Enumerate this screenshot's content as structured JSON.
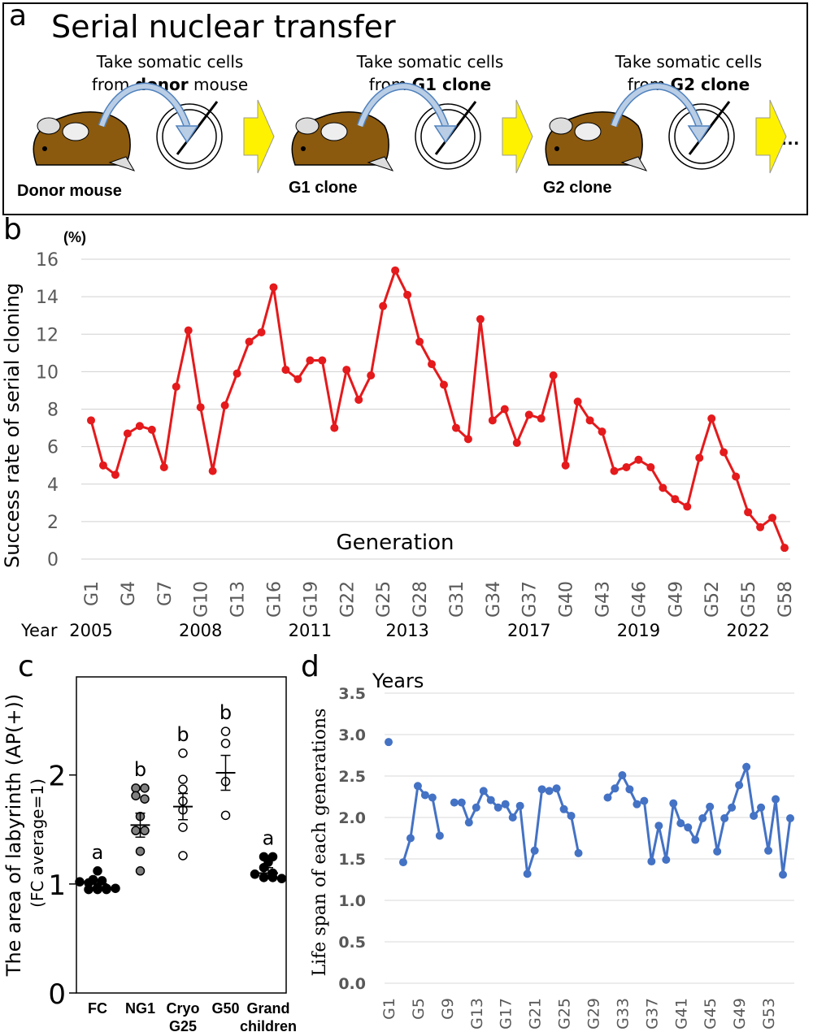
{
  "panel_a": {
    "letter": "a",
    "title": "Serial nuclear transfer",
    "steps": [
      {
        "line1": "Take somatic cells",
        "line2_pre": "from ",
        "line2_bold": "donor",
        "line2_post": " mouse",
        "label": "Donor mouse"
      },
      {
        "line1": "Take somatic cells",
        "line2_pre": "from ",
        "line2_bold": "G1 clone",
        "line2_post": "",
        "label": "G1 clone"
      },
      {
        "line1": "Take somatic cells",
        "line2_pre": "from ",
        "line2_bold": "G2 clone",
        "line2_post": "",
        "label": "G2 clone"
      }
    ],
    "ellipsis": "…",
    "colors": {
      "mouse": "#8B5A0E",
      "arrow": "#FFF200",
      "curve": "#B9CDE5"
    }
  },
  "chart_data": [
    {
      "id": "b",
      "type": "line",
      "ylabel": "Success rate of serial cloning",
      "unit": "(%)",
      "xlabel": "Generation",
      "ylim": [
        0,
        16
      ],
      "yticks": [
        0,
        2,
        4,
        6,
        8,
        10,
        12,
        14,
        16
      ],
      "grid": true,
      "color": "#E41A1C",
      "x": [
        "G1",
        "G2",
        "G3",
        "G4",
        "G5",
        "G6",
        "G7",
        "G8",
        "G9",
        "G10",
        "G11",
        "G12",
        "G13",
        "G14",
        "G15",
        "G16",
        "G17",
        "G18",
        "G19",
        "G20",
        "G21",
        "G22",
        "G23",
        "G24",
        "G25",
        "G26",
        "G27",
        "G28",
        "G29",
        "G30",
        "G31",
        "G32",
        "G33",
        "G34",
        "G35",
        "G36",
        "G37",
        "G38",
        "G39",
        "G40",
        "G41",
        "G42",
        "G43",
        "G44",
        "G45",
        "G46",
        "G47",
        "G48",
        "G49",
        "G50",
        "G51",
        "G52",
        "G53",
        "G54",
        "G55",
        "G56",
        "G57",
        "G58"
      ],
      "x_tick_labels": [
        "G1",
        "G4",
        "G7",
        "G10",
        "G13",
        "G16",
        "G19",
        "G22",
        "G25",
        "G28",
        "G31",
        "G34",
        "G37",
        "G40",
        "G43",
        "G46",
        "G49",
        "G52",
        "G55",
        "G58"
      ],
      "values": [
        7.4,
        5.0,
        4.5,
        6.7,
        7.1,
        6.9,
        4.9,
        9.2,
        12.2,
        8.1,
        4.7,
        8.2,
        9.9,
        11.6,
        12.1,
        14.5,
        10.1,
        9.6,
        10.6,
        10.6,
        7.0,
        10.1,
        8.5,
        9.8,
        13.5,
        15.4,
        14.1,
        11.6,
        10.4,
        9.3,
        7.0,
        6.4,
        12.8,
        7.4,
        8.0,
        6.2,
        7.7,
        7.5,
        9.8,
        5.0,
        8.4,
        7.4,
        6.8,
        4.7,
        4.9,
        5.3,
        4.9,
        3.8,
        3.2,
        2.8,
        5.4,
        7.5,
        5.7,
        4.4,
        2.5,
        1.7,
        2.2,
        0.6
      ],
      "year_label": "Year",
      "years": [
        {
          "label": "2005",
          "at": "G1"
        },
        {
          "label": "2008",
          "at": "G10"
        },
        {
          "label": "2011",
          "at": "G19"
        },
        {
          "label": "2013",
          "at": "G27"
        },
        {
          "label": "2017",
          "at": "G37"
        },
        {
          "label": "2019",
          "at": "G46"
        },
        {
          "label": "2022",
          "at": "G55"
        }
      ]
    },
    {
      "id": "c",
      "type": "scatter",
      "ylabel": "The area of labyrinth (AP(+))",
      "ylabel2": "(FC average=1)",
      "ylim": [
        0,
        2.9
      ],
      "yticks": [
        0,
        1,
        2
      ],
      "categories": [
        "FC",
        "NG1",
        "Cryo G25",
        "G50",
        "Grand children"
      ],
      "category_lines": [
        [
          "FC"
        ],
        [
          "NG1"
        ],
        [
          "Cryo",
          "G25"
        ],
        [
          "G50"
        ],
        [
          "Grand",
          "children"
        ]
      ],
      "groups": [
        {
          "category": "FC",
          "fill": "#000000",
          "letter": "a",
          "mean": 1.0,
          "error": 0.03,
          "points": [
            1.12,
            1.04,
            1.03,
            1.02,
            1.01,
            0.97,
            0.96,
            0.96,
            0.95,
            0.95,
            0.95
          ]
        },
        {
          "category": "NG1",
          "fill": "#808080",
          "letter": "b",
          "mean": 1.54,
          "error": 0.11,
          "points": [
            1.88,
            1.88,
            1.81,
            1.78,
            1.62,
            1.49,
            1.49,
            1.3,
            1.12
          ]
        },
        {
          "category": "Cryo G25",
          "fill": "#ffffff",
          "letter": "b",
          "mean": 1.71,
          "error": 0.12,
          "points": [
            2.2,
            1.96,
            1.87,
            1.76,
            1.68,
            1.52,
            1.26
          ]
        },
        {
          "category": "G50",
          "fill": "#ffffff",
          "letter": "b",
          "mean": 2.02,
          "error": 0.16,
          "points": [
            2.4,
            2.29,
            1.94,
            1.63
          ]
        },
        {
          "category": "Grand children",
          "fill": "#000000",
          "letter": "a",
          "mean": 1.1,
          "error": 0.05,
          "points": [
            1.25,
            1.25,
            1.2,
            1.15,
            1.1,
            1.09,
            1.06,
            1.06,
            1.05
          ]
        }
      ]
    },
    {
      "id": "d",
      "type": "line",
      "ylabel": "Life span of each generations",
      "unit": "Years",
      "ylim": [
        0,
        3.5
      ],
      "yticks": [
        "0.0",
        "0.5",
        "1.0",
        "1.5",
        "2.0",
        "2.5",
        "3.0",
        "3.5"
      ],
      "grid": true,
      "color": "#4472C4",
      "x_tick_labels": [
        "G1",
        "G5",
        "G9",
        "G13",
        "G17",
        "G21",
        "G25",
        "G29",
        "G33",
        "G37",
        "G41",
        "G45",
        "G49",
        "G53"
      ],
      "n_points": 56,
      "values": [
        2.91,
        null,
        1.46,
        1.75,
        2.38,
        2.27,
        2.24,
        1.78,
        null,
        2.18,
        2.18,
        1.94,
        2.12,
        2.32,
        2.21,
        2.12,
        2.16,
        2.0,
        2.14,
        1.32,
        1.6,
        2.34,
        2.32,
        2.35,
        2.1,
        2.02,
        1.57,
        null,
        null,
        null,
        2.24,
        2.35,
        2.51,
        2.34,
        2.16,
        2.2,
        1.47,
        1.9,
        1.49,
        2.17,
        1.93,
        1.88,
        1.73,
        1.99,
        2.13,
        1.59,
        1.99,
        2.12,
        2.39,
        2.61,
        2.02,
        2.12,
        1.6,
        2.22,
        1.31,
        1.99
      ]
    }
  ]
}
